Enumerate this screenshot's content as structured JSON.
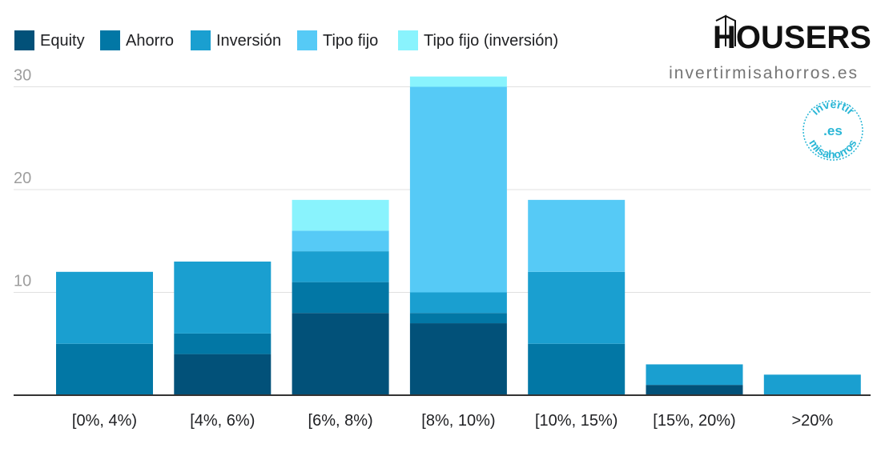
{
  "branding": {
    "logo_text": "HOUSERS",
    "site_url": "invertirmisahorros.es",
    "seal_top": "invertir",
    "seal_center": ".es",
    "seal_bottom": "misahorros"
  },
  "colors": {
    "Equity": "#025179",
    "Ahorro": "#0277a5",
    "Inversión": "#1a9fd0",
    "Tipo fijo": "#56caf6",
    "Tipo fijo (inversión)": "#89f3fd",
    "gridline": "#e0e0e0",
    "axis": "#333333"
  },
  "chart_data": {
    "type": "bar",
    "stacked": true,
    "title": "",
    "xlabel": "",
    "ylabel": "",
    "ylim": [
      0,
      30
    ],
    "yticks": [
      10,
      20,
      30
    ],
    "grid": true,
    "legend_position": "top-left",
    "categories": [
      "[0%, 4%)",
      "[4%, 6%)",
      "[6%, 8%)",
      "[8%, 10%)",
      "[10%, 15%)",
      "[15%, 20%)",
      ">20%"
    ],
    "series": [
      {
        "name": "Equity",
        "values": [
          0,
          4,
          8,
          7,
          0,
          1,
          0
        ]
      },
      {
        "name": "Ahorro",
        "values": [
          5,
          2,
          3,
          1,
          5,
          0,
          0
        ]
      },
      {
        "name": "Inversión",
        "values": [
          7,
          7,
          3,
          2,
          7,
          2,
          2
        ]
      },
      {
        "name": "Tipo fijo",
        "values": [
          0,
          0,
          2,
          20,
          7,
          0,
          0
        ]
      },
      {
        "name": "Tipo fijo (inversión)",
        "values": [
          0,
          0,
          3,
          1,
          0,
          0,
          0
        ]
      }
    ]
  }
}
